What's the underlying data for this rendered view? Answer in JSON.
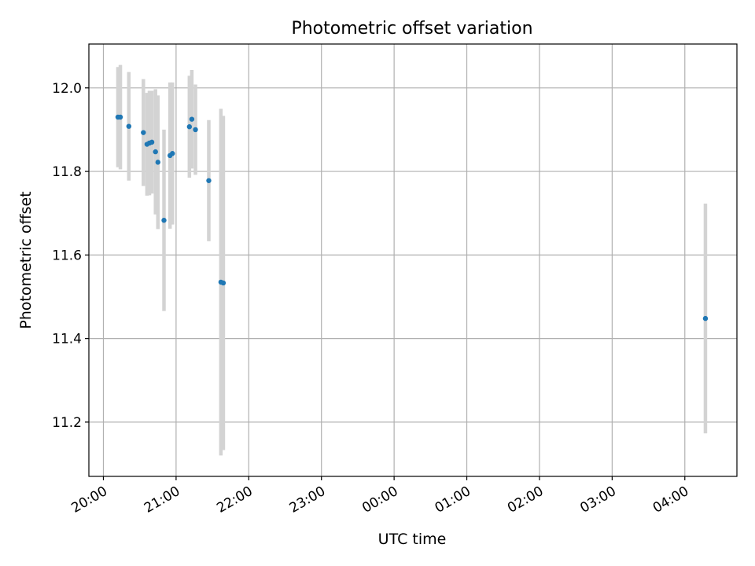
{
  "chart_data": {
    "type": "scatter",
    "title": "Photometric offset variation",
    "xlabel": "UTC time",
    "ylabel": "Photometric offset",
    "x_unit": "UTC",
    "xlim": [
      "19:48",
      "04:43"
    ],
    "ylim": [
      11.07,
      12.105
    ],
    "xticks": [
      "20:00",
      "21:00",
      "22:00",
      "23:00",
      "00:00",
      "01:00",
      "02:00",
      "03:00",
      "04:00"
    ],
    "yticks": [
      11.2,
      11.4,
      11.6,
      11.8,
      12.0
    ],
    "grid": true,
    "legend": "none",
    "colors": {
      "marker": "#1f77b4",
      "errorbar": "#d3d3d3",
      "grid": "#b0b0b0"
    },
    "points": [
      {
        "x": "20:12",
        "y": 11.93,
        "err": 0.12
      },
      {
        "x": "20:14",
        "y": 11.93,
        "err": 0.125
      },
      {
        "x": "20:21",
        "y": 11.908,
        "err": 0.13
      },
      {
        "x": "20:33",
        "y": 11.893,
        "err": 0.128
      },
      {
        "x": "20:36",
        "y": 11.865,
        "err": 0.123
      },
      {
        "x": "20:38",
        "y": 11.868,
        "err": 0.125
      },
      {
        "x": "20:40",
        "y": 11.87,
        "err": 0.123
      },
      {
        "x": "20:43",
        "y": 11.847,
        "err": 0.15
      },
      {
        "x": "20:45",
        "y": 11.822,
        "err": 0.16
      },
      {
        "x": "20:50",
        "y": 11.683,
        "err": 0.217
      },
      {
        "x": "20:55",
        "y": 11.838,
        "err": 0.175
      },
      {
        "x": "20:57",
        "y": 11.843,
        "err": 0.17
      },
      {
        "x": "21:11",
        "y": 11.907,
        "err": 0.122
      },
      {
        "x": "21:13",
        "y": 11.925,
        "err": 0.118
      },
      {
        "x": "21:16",
        "y": 11.9,
        "err": 0.108
      },
      {
        "x": "21:27",
        "y": 11.778,
        "err": 0.145
      },
      {
        "x": "21:37",
        "y": 11.535,
        "err": 0.415
      },
      {
        "x": "21:39",
        "y": 11.533,
        "err": 0.4
      },
      {
        "x": "04:17",
        "y": 11.448,
        "err": 0.275
      }
    ]
  }
}
